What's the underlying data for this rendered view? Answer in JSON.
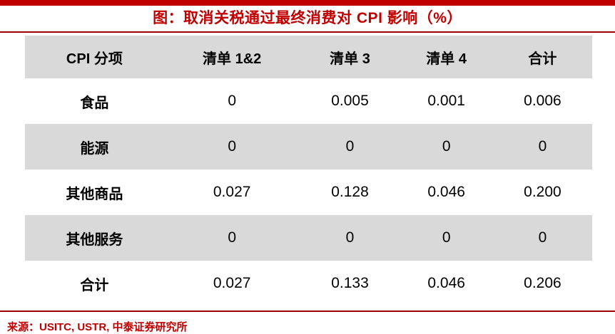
{
  "accent_colors": {
    "top_bar": "#C00000",
    "title_text": "#C00000",
    "rule": "#990000",
    "row_stripe": "#D9D9D9",
    "source_text": "#C00000"
  },
  "chart_data": {
    "type": "table",
    "title": "图：取消关税通过最终消费对 CPI 影响（%）",
    "columns": [
      "CPI 分项",
      "清单 1&2",
      "清单 3",
      "清单 4",
      "合计"
    ],
    "rows": [
      [
        "食品",
        "0",
        "0.005",
        "0.001",
        "0.006"
      ],
      [
        "能源",
        "0",
        "0",
        "0",
        "0"
      ],
      [
        "其他商品",
        "0.027",
        "0.128",
        "0.046",
        "0.200"
      ],
      [
        "其他服务",
        "0",
        "0",
        "0",
        "0"
      ],
      [
        "合计",
        "0.027",
        "0.133",
        "0.046",
        "0.206"
      ]
    ],
    "source": "来源：USITC, USTR, 中泰证券研究所"
  }
}
